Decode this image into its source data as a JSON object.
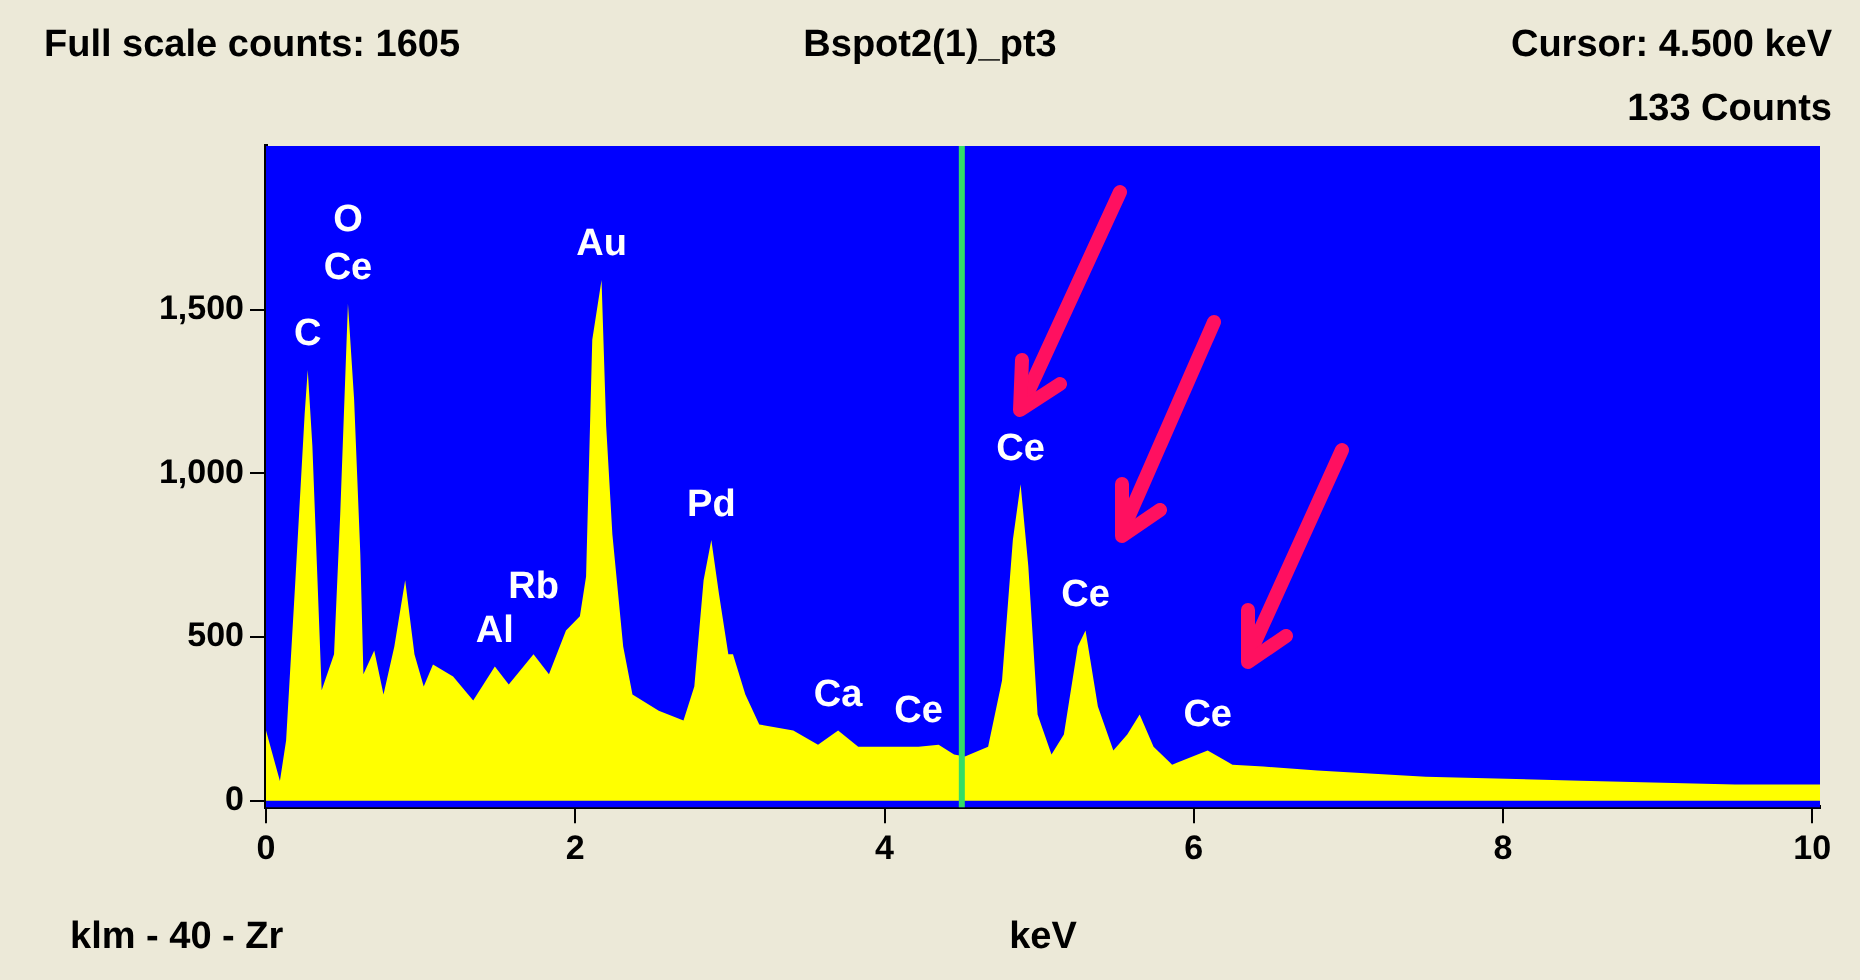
{
  "chart_data": {
    "type": "area",
    "title": "Bspot2(1)_pt3",
    "xlabel": "keV",
    "color": "#ffff00",
    "x": [
      0,
      0.09,
      0.13,
      0.19,
      0.25,
      0.27,
      0.3,
      0.36,
      0.44,
      0.48,
      0.53,
      0.57,
      0.61,
      0.63,
      0.7,
      0.76,
      0.83,
      0.9,
      0.96,
      1.02,
      1.08,
      1.21,
      1.34,
      1.48,
      1.57,
      1.73,
      1.83,
      1.94,
      2.03,
      2.07,
      2.11,
      2.17,
      2.2,
      2.24,
      2.31,
      2.37,
      2.54,
      2.7,
      2.77,
      2.83,
      2.88,
      2.93,
      2.99,
      3.02,
      3.1,
      3.19,
      3.41,
      3.57,
      3.7,
      3.83,
      4.22,
      4.35,
      4.45,
      4.52,
      4.67,
      4.76,
      4.83,
      4.88,
      4.93,
      4.99,
      5.08,
      5.16,
      5.25,
      5.3,
      5.38,
      5.48,
      5.57,
      5.65,
      5.74,
      5.86,
      6.09,
      6.25,
      6.45,
      6.8,
      7.5,
      8.5,
      9.5,
      10.05
    ],
    "values": [
      214,
      60,
      184,
      673,
      1181,
      1316,
      1083,
      337,
      447,
      875,
      1518,
      1224,
      753,
      386,
      459,
      324,
      471,
      673,
      447,
      349,
      416,
      379,
      306,
      410,
      355,
      447,
      386,
      520,
      563,
      685,
      1408,
      1591,
      1144,
      814,
      471,
      324,
      275,
      245,
      349,
      673,
      796,
      630,
      447,
      447,
      324,
      233,
      214,
      171,
      214,
      165,
      165,
      171,
      141,
      135,
      165,
      367,
      796,
      967,
      716,
      263,
      141,
      202,
      471,
      520,
      288,
      153,
      202,
      263,
      165,
      110,
      153,
      110,
      104,
      92,
      73,
      61,
      49,
      49
    ],
    "xlim": [
      0,
      10.05
    ],
    "xticks": [
      0,
      2,
      4,
      6,
      8,
      10
    ],
    "ylim": [
      -20,
      2000
    ],
    "yticks": [
      0,
      500,
      {
        "value": 1000,
        "label": "1,000"
      },
      {
        "value": 1500,
        "label": "1,500"
      }
    ],
    "legend": false,
    "ref_lines": [
      {
        "axis": "x",
        "value": 4.5,
        "color": "#33dd66"
      }
    ],
    "annotations": [
      "Full scale counts: 1605",
      "Cursor: 4.500 keV",
      "133 Counts",
      "klm - 40 - Zr",
      {
        "text": "C",
        "x": 0.27,
        "y": 1316
      },
      {
        "text": "Ce",
        "x": 0.53,
        "y": 1518
      },
      {
        "text": "O",
        "x": 0.53,
        "y": 1518
      },
      {
        "text": "Al",
        "x": 1.48,
        "y": 410
      },
      {
        "text": "Rb",
        "x": 1.73,
        "y": 447
      },
      {
        "text": "Au",
        "x": 2.17,
        "y": 1591
      },
      {
        "text": "Pd",
        "x": 2.88,
        "y": 796
      },
      {
        "text": "Ca",
        "x": 3.7,
        "y": 214
      },
      {
        "text": "Ce",
        "x": 4.22,
        "y": 165
      },
      {
        "text": "Ce",
        "x": 4.88,
        "y": 967
      },
      {
        "text": "Ce",
        "x": 5.3,
        "y": 520
      },
      {
        "text": "Ce",
        "x": 6.09,
        "y": 153
      }
    ]
  }
}
